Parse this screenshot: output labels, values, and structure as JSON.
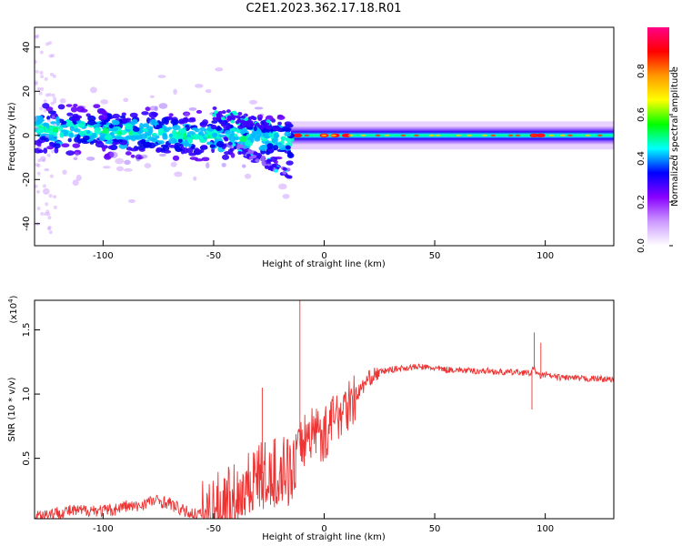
{
  "title": "C2E1.2023.362.17.18.R01",
  "chart_data": [
    {
      "type": "heatmap",
      "xlabel": "Height of straight line (km)",
      "ylabel": "Frequency (Hz)",
      "xlim": [
        -131,
        131
      ],
      "ylim": [
        -50,
        49
      ],
      "xticks": [
        -100,
        -50,
        0,
        50,
        100
      ],
      "yticks": [
        -40,
        -20,
        0,
        20,
        40
      ],
      "colorbar": {
        "label": "Normalized spectral amplitude",
        "range": [
          0,
          1
        ],
        "ticks": [
          "0.0",
          "0.2",
          "0.4",
          "0.6",
          "0.8"
        ],
        "colors": [
          "#ffffff",
          "#cc99ff",
          "#8800ff",
          "#0000ff",
          "#00ffff",
          "#00ff00",
          "#ffff00",
          "#ff9900",
          "#ff0000",
          "#ff0088"
        ]
      },
      "features": [
        {
          "name": "scattered band",
          "x_range": [
            -130,
            -15
          ],
          "freq_center_at_start": 3,
          "freq_center_at_end": -2,
          "spread_hz": 15
        },
        {
          "name": "descending branch",
          "x_range": [
            -45,
            -15
          ],
          "freq_start": -3,
          "freq_end": -18
        },
        {
          "name": "ascending branch",
          "x_range": [
            -50,
            -25
          ],
          "freq_start": 10,
          "freq_end": 5
        },
        {
          "name": "narrow band",
          "x_range": [
            -15,
            131
          ],
          "freq_center": 0,
          "spread_hz": 4
        },
        {
          "name": "peak amplitude spots",
          "x_values": [
            -12,
            0,
            5,
            10,
            95,
            98
          ],
          "freq": 0
        }
      ]
    },
    {
      "type": "line",
      "xlabel": "Height of straight line (km)",
      "ylabel": "SNR (10 * v/v)",
      "y_multiplier_label": "(x10",
      "y_multiplier_exp": "4",
      "y_multiplier_close": ")",
      "xlim": [
        -131,
        131
      ],
      "ylim": [
        0.03,
        1.73
      ],
      "xticks": [
        -100,
        -50,
        0,
        50,
        100
      ],
      "yticks": [
        "0.5",
        "1.0",
        "1.5"
      ],
      "color": "#ee3333",
      "series": [
        {
          "x": [
            -131,
            -125,
            -120,
            -115,
            -110,
            -105,
            -100,
            -95,
            -90,
            -85,
            -80,
            -75,
            -70,
            -65,
            -60,
            -55,
            -50,
            -45,
            -40,
            -35,
            -30,
            -25,
            -20,
            -15,
            -12,
            -10,
            -5,
            0,
            5,
            10,
            15,
            20,
            25,
            30,
            35,
            40,
            45,
            50,
            55,
            60,
            65,
            70,
            75,
            80,
            85,
            90,
            93,
            95,
            97,
            100,
            105,
            110,
            115,
            120,
            125,
            131
          ],
          "y": [
            0.05,
            0.07,
            0.08,
            0.09,
            0.09,
            0.1,
            0.09,
            0.1,
            0.13,
            0.12,
            0.16,
            0.17,
            0.15,
            0.1,
            0.07,
            0.06,
            0.09,
            0.16,
            0.22,
            0.33,
            0.4,
            0.36,
            0.45,
            0.4,
            0.55,
            0.65,
            0.75,
            0.7,
            0.85,
            0.95,
            1.0,
            1.12,
            1.17,
            1.19,
            1.2,
            1.21,
            1.21,
            1.2,
            1.19,
            1.19,
            1.18,
            1.18,
            1.18,
            1.17,
            1.17,
            1.17,
            1.16,
            1.2,
            1.14,
            1.15,
            1.13,
            1.13,
            1.12,
            1.12,
            1.12,
            1.11
          ]
        }
      ],
      "spikes": [
        {
          "x": -28,
          "y": 1.05
        },
        {
          "x": -11,
          "y": 1.73
        },
        {
          "x": 95,
          "y": 1.48
        },
        {
          "x": 94,
          "y": 0.88
        },
        {
          "x": 98,
          "y": 1.4
        }
      ]
    }
  ]
}
